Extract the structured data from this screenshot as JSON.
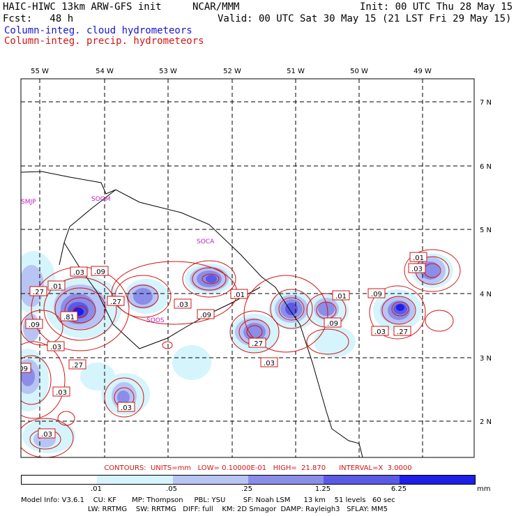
{
  "header": {
    "title": "HAIC-HIWC 13km ARW-GFS init",
    "org": "NCAR/MMM",
    "init": "Init: 00 UTC Thu 28 May 15",
    "fcst": "Fcst:   48 h",
    "valid": "Valid: 00 UTC Sat 30 May 15 (21 LST Fri 29 May 15)",
    "field_blue": "Column-integ. cloud hydrometeors",
    "field_red": "Column-integ. precip. hydrometeors"
  },
  "map": {
    "lon_labels": [
      "55 W",
      "54 W",
      "53 W",
      "52 W",
      "51 W",
      "50 W",
      "49 W"
    ],
    "lat_labels": [
      "7 N",
      "6 N",
      "5 N",
      "4 N",
      "3 N",
      "2 N"
    ],
    "stations": [
      "SMJP",
      "SOGM",
      "SOCA",
      "SOOS"
    ],
    "contour_labels": [
      ".03",
      ".09",
      ".01",
      ".27",
      ".81",
      ".09",
      ".03",
      ".01",
      ".03",
      ".09",
      ".27",
      ".03",
      ".03",
      ".27",
      ".03",
      ".01",
      ".09",
      ".01",
      ".09",
      ".27",
      ".03",
      ".03",
      ".09",
      ".27",
      ".03"
    ]
  },
  "contour_info": "CONTOURS:  UNITS=mm   LOW= 0.10000E-01   HIGH=  21.870      INTERVAL=X  3.0000",
  "colorbar": {
    "ticks": [
      ".01",
      ".05",
      ".25",
      "1.25",
      "6.25"
    ],
    "unit": "mm",
    "colors": [
      "#ffffff",
      "#d6f4fb",
      "#b8c4f3",
      "#8a8ee8",
      "#5a5ae6",
      "#1e1ee8"
    ]
  },
  "model_info": {
    "line1": "Model Info: V3.6.1    CU: KF       MP: Thompson     PBL: YSU        SF: Noah LSM      13 km    51 levels   60 sec",
    "line2": "LW: RRTMG    SW: RRTMG   DIFF: full    KM: 2D Smagor  DAMP: Rayleigh3   SFLAY: MM5"
  }
}
